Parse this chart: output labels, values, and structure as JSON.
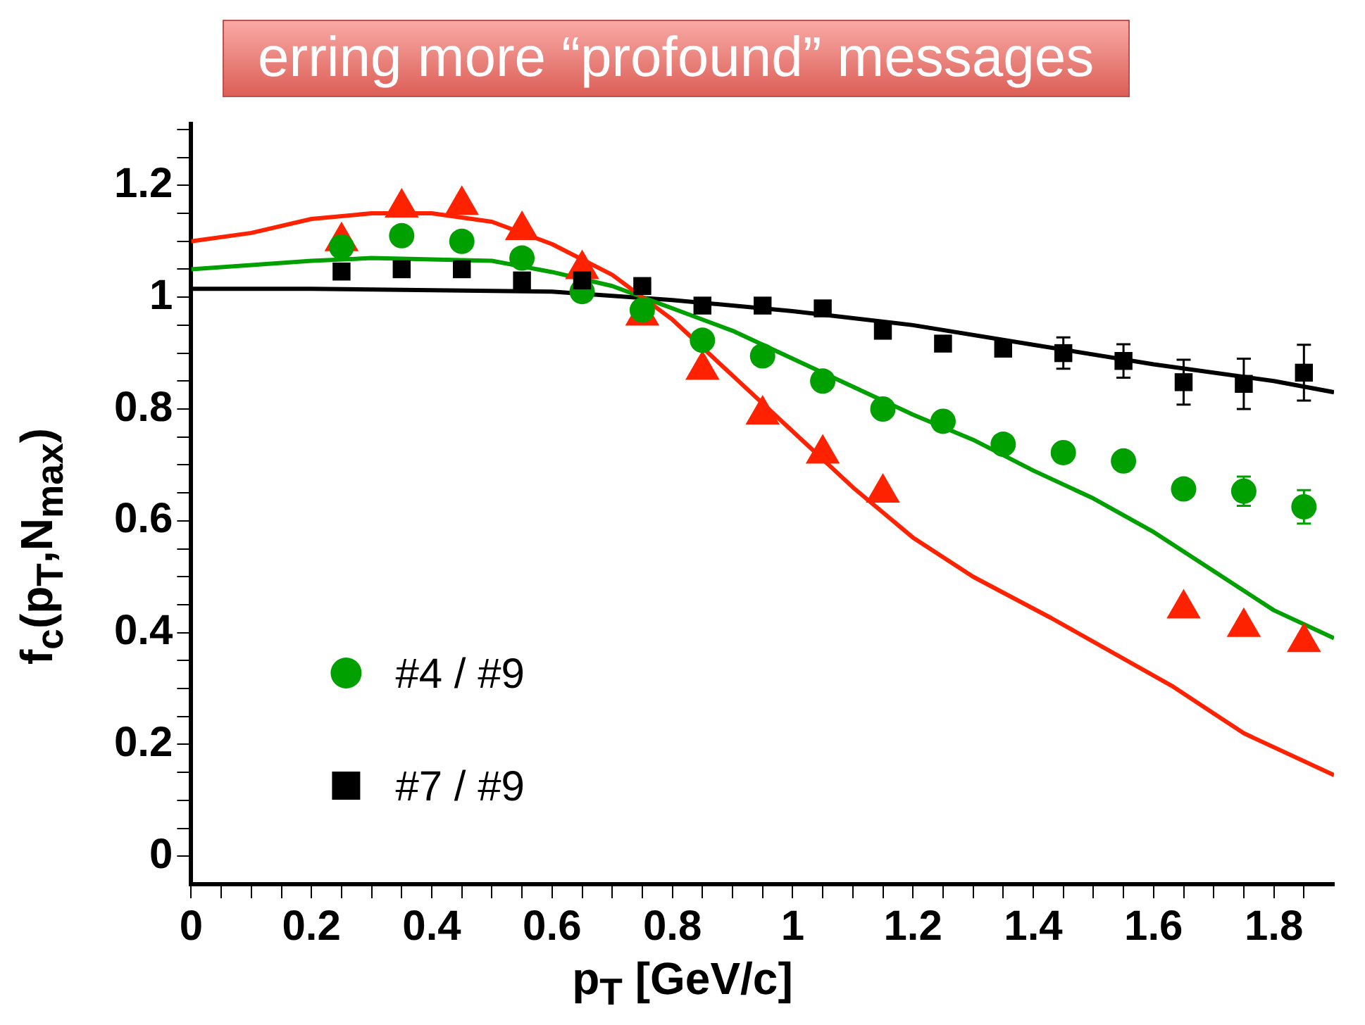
{
  "chart_data": {
    "type": "scatter",
    "xlabel": "p$_{T}$ [GeV/c]",
    "ylabel": "f$_{c}$(p$_{T}$,N$_{max}$)",
    "annotations": [
      "erring more “profound” messages"
    ],
    "xlim": [
      0,
      1.9
    ],
    "ylim": [
      -0.05,
      1.31
    ],
    "xticks": [
      0,
      {
        "value": 0.05,
        "label": null
      },
      {
        "value": 0.1,
        "label": null
      },
      {
        "value": 0.15,
        "label": null
      },
      {
        "value": 0.2,
        "label": "0.2"
      },
      {
        "value": 0.25,
        "label": null
      },
      {
        "value": 0.3,
        "label": null
      },
      {
        "value": 0.35,
        "label": null
      },
      {
        "value": 0.4,
        "label": "0.4"
      },
      {
        "value": 0.45,
        "label": null
      },
      {
        "value": 0.5,
        "label": null
      },
      {
        "value": 0.55,
        "label": null
      },
      {
        "value": 0.6,
        "label": "0.6"
      },
      {
        "value": 0.65,
        "label": null
      },
      {
        "value": 0.7,
        "label": null
      },
      {
        "value": 0.75,
        "label": null
      },
      {
        "value": 0.8,
        "label": "0.8"
      },
      {
        "value": 0.85,
        "label": null
      },
      {
        "value": 0.9,
        "label": null
      },
      {
        "value": 0.95,
        "label": null
      },
      1,
      {
        "value": 1.05,
        "label": null
      },
      {
        "value": 1.1,
        "label": null
      },
      {
        "value": 1.15,
        "label": null
      },
      {
        "value": 1.2,
        "label": "1.2"
      },
      {
        "value": 1.25,
        "label": null
      },
      {
        "value": 1.3,
        "label": null
      },
      {
        "value": 1.35,
        "label": null
      },
      {
        "value": 1.4,
        "label": "1.4"
      },
      {
        "value": 1.45,
        "label": null
      },
      {
        "value": 1.5,
        "label": null
      },
      {
        "value": 1.55,
        "label": null
      },
      {
        "value": 1.6,
        "label": "1.6"
      },
      {
        "value": 1.65,
        "label": null
      },
      {
        "value": 1.7,
        "label": null
      },
      {
        "value": 1.75,
        "label": null
      },
      {
        "value": 1.8,
        "label": "1.8"
      },
      {
        "value": 1.85,
        "label": null
      }
    ],
    "yticks": [
      0,
      {
        "value": 0.05,
        "label": null
      },
      {
        "value": 0.1,
        "label": null
      },
      {
        "value": 0.15,
        "label": null
      },
      {
        "value": 0.2,
        "label": "0.2"
      },
      {
        "value": 0.25,
        "label": null
      },
      {
        "value": 0.3,
        "label": null
      },
      {
        "value": 0.35,
        "label": null
      },
      {
        "value": 0.4,
        "label": "0.4"
      },
      {
        "value": 0.45,
        "label": null
      },
      {
        "value": 0.5,
        "label": null
      },
      {
        "value": 0.55,
        "label": null
      },
      {
        "value": 0.6,
        "label": "0.6"
      },
      {
        "value": 0.65,
        "label": null
      },
      {
        "value": 0.7,
        "label": null
      },
      {
        "value": 0.75,
        "label": null
      },
      {
        "value": 0.8,
        "label": "0.8"
      },
      {
        "value": 0.85,
        "label": null
      },
      {
        "value": 0.9,
        "label": null
      },
      {
        "value": 0.95,
        "label": null
      },
      1,
      {
        "value": 1.05,
        "label": null
      },
      {
        "value": 1.1,
        "label": null
      },
      {
        "value": 1.15,
        "label": null
      },
      {
        "value": 1.2,
        "label": "1.2"
      },
      {
        "value": 1.25,
        "label": null
      },
      {
        "value": 1.3,
        "label": null
      }
    ],
    "grid": false,
    "legend": "bottom left",
    "series": [
      {
        "marker": "triangle",
        "color": "#ff2200",
        "x": [
          0.25,
          0.35,
          0.45,
          0.55,
          0.65,
          0.75,
          0.85,
          0.95,
          1.05,
          1.15,
          1.25,
          1.35,
          1.45,
          1.55,
          1.65,
          1.75,
          1.85
        ],
        "values": [
          1.1,
          1.16,
          1.165,
          1.12,
          1.05,
          0.967,
          0.87,
          0.79,
          0.72,
          0.65,
          null,
          null,
          null,
          null,
          0.443,
          0.41,
          0.383
        ]
      },
      {
        "marker": "circle",
        "color": "#00a000",
        "name": "#4 / #9",
        "x": [
          0.25,
          0.35,
          0.45,
          0.55,
          0.65,
          0.75,
          0.85,
          0.95,
          1.05,
          1.15,
          1.25,
          1.35,
          1.45,
          1.55,
          1.65,
          1.75,
          1.85
        ],
        "values": [
          1.09,
          1.11,
          1.1,
          1.07,
          1.01,
          0.977,
          0.923,
          0.895,
          0.85,
          0.8,
          0.778,
          0.737,
          0.722,
          0.707,
          0.657,
          0.653,
          0.625
        ],
        "errors": [
          null,
          null,
          null,
          null,
          null,
          null,
          null,
          null,
          null,
          null,
          null,
          null,
          null,
          null,
          null,
          0.026,
          0.03
        ]
      },
      {
        "marker": "square",
        "color": "#000000",
        "name": "#7 / #9",
        "x": [
          0.25,
          0.35,
          0.45,
          0.55,
          0.65,
          0.75,
          0.85,
          0.95,
          1.05,
          1.15,
          1.25,
          1.35,
          1.45,
          1.55,
          1.65,
          1.75,
          1.85
        ],
        "values": [
          1.046,
          1.05,
          1.05,
          1.03,
          1.03,
          1.02,
          0.985,
          0.985,
          0.98,
          0.94,
          0.917,
          0.908,
          0.9,
          0.886,
          0.848,
          0.845,
          0.865
        ],
        "errors": [
          null,
          null,
          null,
          null,
          null,
          null,
          null,
          null,
          null,
          null,
          null,
          null,
          0.028,
          0.03,
          0.04,
          0.045,
          0.05
        ]
      },
      {
        "type": "line",
        "marker": "none",
        "color": "#ff2200",
        "x": [
          0,
          0.1,
          0.2,
          0.3,
          0.4,
          0.5,
          0.6,
          0.7,
          0.75,
          0.8,
          0.9,
          1.0,
          1.1,
          1.2,
          1.3,
          1.43,
          1.63,
          1.75,
          1.9
        ],
        "values": [
          1.1,
          1.115,
          1.14,
          1.15,
          1.15,
          1.135,
          1.095,
          1.04,
          1.0,
          0.96,
          0.86,
          0.76,
          0.66,
          0.57,
          0.5,
          0.426,
          0.305,
          0.22,
          0.145
        ]
      },
      {
        "type": "line",
        "marker": "none",
        "color": "#00a000",
        "x": [
          0,
          0.2,
          0.3,
          0.5,
          0.6,
          0.7,
          0.8,
          0.9,
          1.0,
          1.1,
          1.2,
          1.3,
          1.4,
          1.5,
          1.6,
          1.7,
          1.8,
          1.9
        ],
        "values": [
          1.05,
          1.065,
          1.07,
          1.065,
          1.045,
          1.02,
          0.98,
          0.94,
          0.89,
          0.84,
          0.79,
          0.745,
          0.69,
          0.64,
          0.58,
          0.51,
          0.44,
          0.39
        ]
      },
      {
        "type": "line",
        "marker": "none",
        "color": "#000000",
        "x": [
          0,
          0.2,
          0.6,
          0.8,
          1.0,
          1.2,
          1.4,
          1.6,
          1.8,
          1.9
        ],
        "values": [
          1.015,
          1.015,
          1.01,
          0.995,
          0.975,
          0.95,
          0.915,
          0.88,
          0.85,
          0.83
        ]
      }
    ]
  }
}
